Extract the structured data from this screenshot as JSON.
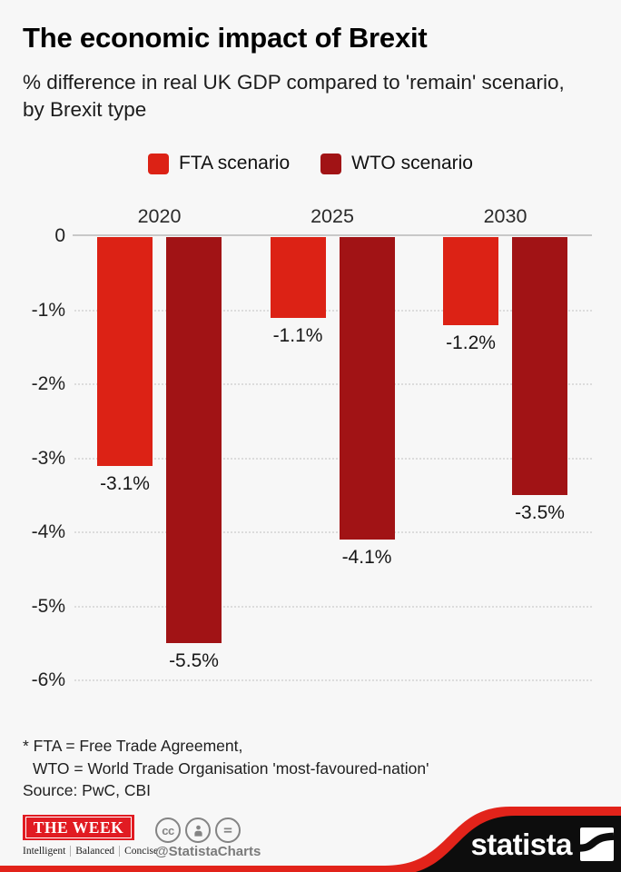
{
  "page": {
    "background": "#f7f7f7"
  },
  "header": {
    "title": "The economic impact of Brexit",
    "subtitle": "% difference in real UK GDP compared to 'remain' scenario, by Brexit type"
  },
  "legend": {
    "items": [
      {
        "label": "FTA scenario",
        "color": "#dc2215"
      },
      {
        "label": "WTO scenario",
        "color": "#a11315"
      }
    ]
  },
  "chart_data": {
    "type": "bar",
    "title": "The economic impact of Brexit",
    "categories": [
      "2020",
      "2025",
      "2030"
    ],
    "series": [
      {
        "name": "FTA scenario",
        "color": "#dc2215",
        "values": [
          -3.1,
          -1.1,
          -1.2
        ],
        "labels": [
          "-3.1%",
          "-1.1%",
          "-1.2%"
        ]
      },
      {
        "name": "WTO scenario",
        "color": "#a11315",
        "values": [
          -5.5,
          -4.1,
          -3.5
        ],
        "labels": [
          "-5.5%",
          "-4.1%",
          "-3.5%"
        ]
      }
    ],
    "ylim": [
      -6,
      0
    ],
    "yticks": [
      {
        "value": 0,
        "label": "0"
      },
      {
        "value": -1,
        "label": "-1%"
      },
      {
        "value": -2,
        "label": "-2%"
      },
      {
        "value": -3,
        "label": "-3%"
      },
      {
        "value": -4,
        "label": "-4%"
      },
      {
        "value": -5,
        "label": "-5%"
      },
      {
        "value": -6,
        "label": "-6%"
      }
    ],
    "grid": "horizontal-dotted",
    "legend_position": "top",
    "value_labels": "below-bars"
  },
  "footnote": {
    "lines": [
      "* FTA = Free Trade Agreement,",
      "WTO = World Trade Organisation 'most-favoured-nation'",
      "Source: PwC, CBI"
    ]
  },
  "footer": {
    "the_week": {
      "logo_text": "THE WEEK",
      "tagline": [
        "Intelligent",
        "Balanced",
        "Concise"
      ]
    },
    "license": {
      "icons": [
        "cc-icon",
        "attribution-person-icon",
        "no-derivatives-icon"
      ],
      "cc_text": "cc"
    },
    "social": {
      "handle": "@StatistaCharts"
    },
    "brand": {
      "logo_text": "statista"
    },
    "colors": {
      "swoosh_red": "#e2231a",
      "swoosh_black": "#0d0d0d",
      "week_red": "#e11b22",
      "icon_gray": "#848484"
    }
  }
}
